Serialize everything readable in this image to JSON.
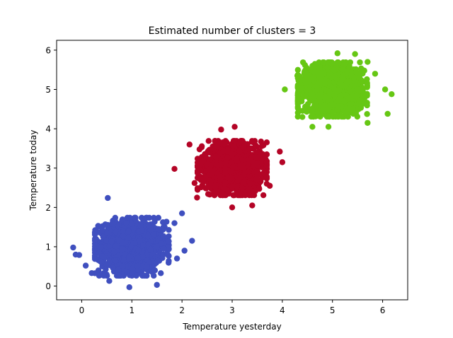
{
  "chart_data": {
    "type": "scatter",
    "title": "Estimated number of clusters = 3",
    "xlabel": "Temperature yesterday",
    "ylabel": "Temperature today",
    "xlim": [
      -0.5,
      6.5
    ],
    "ylim": [
      -0.35,
      6.25
    ],
    "xticks": [
      0,
      1,
      2,
      3,
      4,
      5,
      6
    ],
    "yticks": [
      0,
      1,
      2,
      3,
      4,
      5,
      6
    ],
    "grid": false,
    "clusters": [
      {
        "center": [
          1.0,
          1.0
        ],
        "spread": 0.32,
        "color": "#3f4fbf",
        "approx_points": 1400
      },
      {
        "center": [
          3.0,
          3.0
        ],
        "spread": 0.3,
        "color": "#b40426",
        "approx_points": 1400
      },
      {
        "center": [
          5.0,
          5.0
        ],
        "spread": 0.3,
        "color": "#66c714",
        "approx_points": 1400
      }
    ],
    "outliers": [
      {
        "x": -0.17,
        "y": 0.98,
        "cluster": 0
      },
      {
        "x": -0.12,
        "y": 0.8,
        "cluster": 0
      },
      {
        "x": -0.05,
        "y": 0.79,
        "cluster": 0
      },
      {
        "x": 0.08,
        "y": 0.52,
        "cluster": 0
      },
      {
        "x": 0.2,
        "y": 0.33,
        "cluster": 0
      },
      {
        "x": 0.52,
        "y": 2.24,
        "cluster": 0
      },
      {
        "x": 0.55,
        "y": 0.13,
        "cluster": 0
      },
      {
        "x": 0.95,
        "y": -0.03,
        "cluster": 0
      },
      {
        "x": 1.5,
        "y": 0.03,
        "cluster": 0
      },
      {
        "x": 2.0,
        "y": 1.85,
        "cluster": 0
      },
      {
        "x": 2.05,
        "y": 0.9,
        "cluster": 0
      },
      {
        "x": 2.2,
        "y": 1.15,
        "cluster": 0
      },
      {
        "x": 1.85,
        "y": 1.6,
        "cluster": 0
      },
      {
        "x": 1.9,
        "y": 0.7,
        "cluster": 0
      },
      {
        "x": 1.85,
        "y": 2.98,
        "cluster": 1
      },
      {
        "x": 2.15,
        "y": 3.6,
        "cluster": 1
      },
      {
        "x": 2.25,
        "y": 2.62,
        "cluster": 1
      },
      {
        "x": 2.3,
        "y": 2.25,
        "cluster": 1
      },
      {
        "x": 3.0,
        "y": 2.0,
        "cluster": 1
      },
      {
        "x": 3.4,
        "y": 2.05,
        "cluster": 1
      },
      {
        "x": 3.05,
        "y": 4.05,
        "cluster": 1
      },
      {
        "x": 2.78,
        "y": 3.98,
        "cluster": 1
      },
      {
        "x": 3.95,
        "y": 3.42,
        "cluster": 1
      },
      {
        "x": 4.0,
        "y": 3.15,
        "cluster": 1
      },
      {
        "x": 3.75,
        "y": 2.55,
        "cluster": 1
      },
      {
        "x": 4.05,
        "y": 5.0,
        "cluster": 2
      },
      {
        "x": 4.3,
        "y": 5.35,
        "cluster": 2
      },
      {
        "x": 4.4,
        "y": 4.3,
        "cluster": 2
      },
      {
        "x": 4.6,
        "y": 4.05,
        "cluster": 2
      },
      {
        "x": 4.92,
        "y": 4.05,
        "cluster": 2
      },
      {
        "x": 5.1,
        "y": 5.92,
        "cluster": 2
      },
      {
        "x": 5.45,
        "y": 5.9,
        "cluster": 2
      },
      {
        "x": 5.7,
        "y": 5.7,
        "cluster": 2
      },
      {
        "x": 5.85,
        "y": 5.4,
        "cluster": 2
      },
      {
        "x": 6.05,
        "y": 5.0,
        "cluster": 2
      },
      {
        "x": 6.1,
        "y": 4.38,
        "cluster": 2
      },
      {
        "x": 6.18,
        "y": 4.88,
        "cluster": 2
      },
      {
        "x": 5.7,
        "y": 4.15,
        "cluster": 2
      }
    ]
  }
}
